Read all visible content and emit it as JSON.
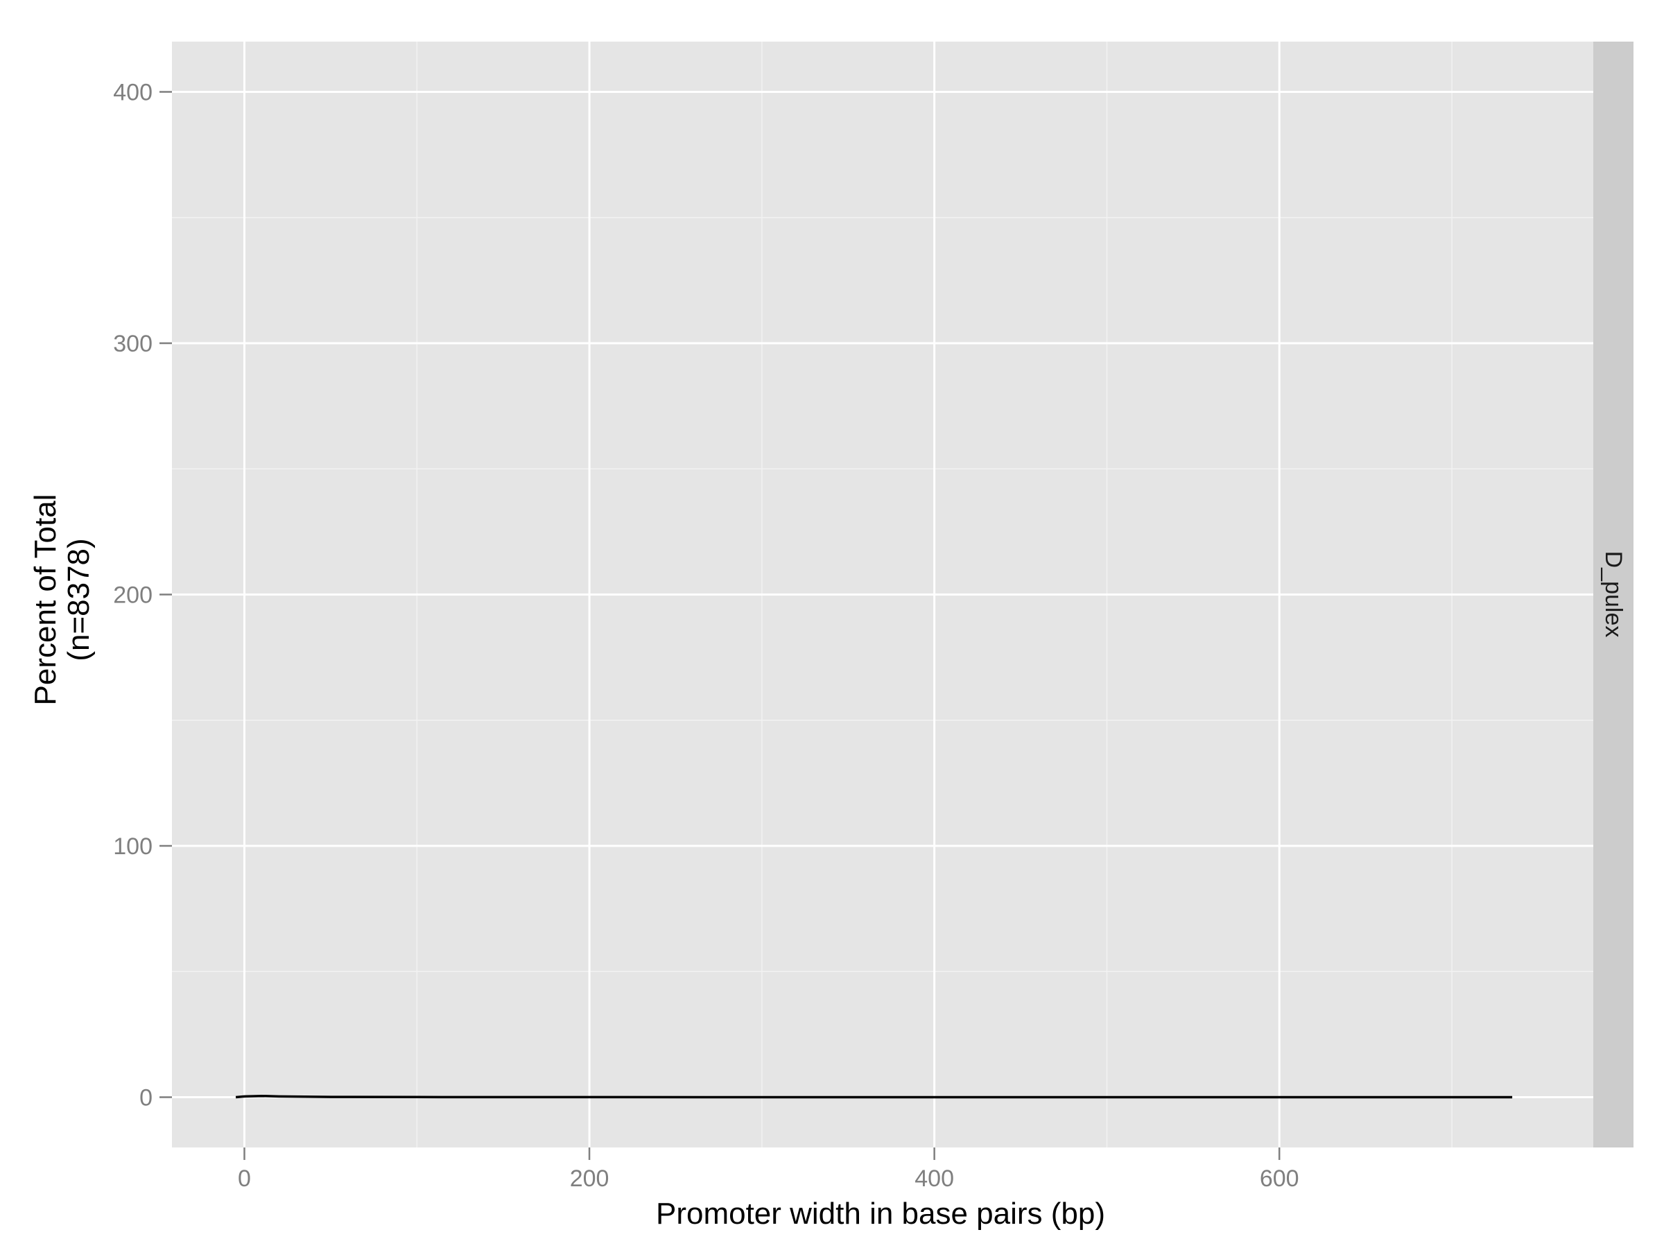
{
  "chart_data": {
    "type": "line",
    "title": "",
    "xlabel": "Promoter width in base pairs (bp)",
    "ylabel_lines": [
      "Percent of Total",
      "(n=8378)"
    ],
    "facet_label": "D_pulex",
    "xlim": [
      -42,
      782
    ],
    "ylim": [
      -20,
      420
    ],
    "x_major_ticks": [
      0,
      200,
      400,
      600
    ],
    "x_minor_ticks": [
      100,
      300,
      500,
      700
    ],
    "y_major_ticks": [
      0,
      100,
      200,
      300,
      400
    ],
    "y_minor_ticks": [
      50,
      150,
      250,
      350
    ],
    "x_tick_labels": [
      "0",
      "200",
      "400",
      "600"
    ],
    "y_tick_labels": [
      "0",
      "100",
      "200",
      "300",
      "400"
    ],
    "grid": true,
    "series": [
      {
        "color": "#000000",
        "x": [
          -5,
          0,
          10,
          20,
          50,
          100,
          200,
          300,
          400,
          500,
          600,
          700,
          735
        ],
        "y": [
          0,
          0.3,
          0.5,
          0.3,
          0.1,
          0.05,
          0.02,
          0.01,
          0.01,
          0.01,
          0.01,
          0.01,
          0
        ]
      }
    ],
    "colors": {
      "panel_bg": "#e5e5e5",
      "grid_major": "#ffffff",
      "grid_minor": "#f2f2f2",
      "strip_bg": "#cccccc",
      "tick_text": "#7f7f7f",
      "axis_title": "#000000"
    }
  }
}
